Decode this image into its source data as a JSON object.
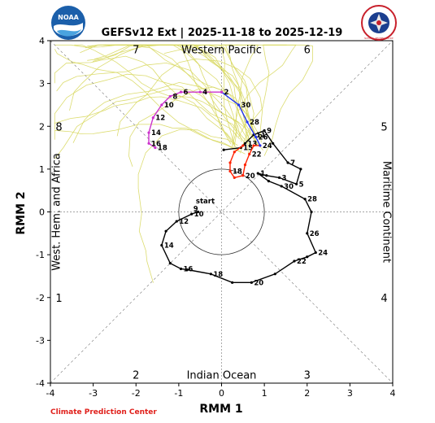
{
  "title": "GEFSv12 Ext | 2025-11-18 to 2025-12-19",
  "credit": "Climate Prediction Center",
  "logos": {
    "left": {
      "icon": "noaa-logo",
      "text": "NOAA"
    },
    "right": {
      "icon": "nws-logo",
      "text": "NATIONAL WEATHER SERVICE"
    }
  },
  "chart_data": {
    "type": "line",
    "title": "GEFSv12 Ext | 2025-11-18 to 2025-12-19",
    "xlabel": "RMM 1",
    "ylabel": "RMM 2",
    "xlim": [
      -4,
      4
    ],
    "ylim": [
      -4,
      4
    ],
    "xticks": [
      "-4",
      "-3",
      "-2",
      "-1",
      "0",
      "1",
      "2",
      "3",
      "4"
    ],
    "yticks": [
      "-4",
      "-3",
      "-2",
      "-1",
      "0",
      "1",
      "2",
      "3",
      "4"
    ],
    "grid": false,
    "unit_circle_radius": 1,
    "region_labels": {
      "top": "Western Pacific",
      "bottom": "Indian Ocean",
      "left": "West. Hem. and Africa",
      "right": "Maritime Continent"
    },
    "phase_labels": [
      {
        "text": "1",
        "x": -3.8,
        "y": -2.0
      },
      {
        "text": "2",
        "x": -2.0,
        "y": -3.8
      },
      {
        "text": "3",
        "x": 2.0,
        "y": -3.8
      },
      {
        "text": "4",
        "x": 3.8,
        "y": -2.0
      },
      {
        "text": "5",
        "x": 3.8,
        "y": 2.0
      },
      {
        "text": "6",
        "x": 2.0,
        "y": 3.8
      },
      {
        "text": "7",
        "x": -2.0,
        "y": 3.8
      },
      {
        "text": "8",
        "x": -3.8,
        "y": 2.0
      }
    ],
    "start_label": "start",
    "series": [
      {
        "color": "#000000",
        "points": [
          {
            "x": -0.55,
            "y": 0.0,
            "label": ""
          },
          {
            "x": -0.7,
            "y": -0.05,
            "label": "10"
          },
          {
            "x": -1.05,
            "y": -0.22,
            "label": "12"
          },
          {
            "x": -1.3,
            "y": -0.45,
            "label": ""
          },
          {
            "x": -1.4,
            "y": -0.78,
            "label": "14"
          },
          {
            "x": -1.2,
            "y": -1.2,
            "label": ""
          },
          {
            "x": -0.95,
            "y": -1.33,
            "label": "16"
          },
          {
            "x": -0.8,
            "y": -1.35,
            "label": ""
          },
          {
            "x": -0.25,
            "y": -1.45,
            "label": "18"
          },
          {
            "x": 0.25,
            "y": -1.65,
            "label": ""
          },
          {
            "x": 0.7,
            "y": -1.65,
            "label": "20"
          },
          {
            "x": 1.25,
            "y": -1.45,
            "label": ""
          },
          {
            "x": 1.7,
            "y": -1.15,
            "label": "22"
          },
          {
            "x": 2.0,
            "y": -1.05,
            "label": ""
          },
          {
            "x": 2.2,
            "y": -0.95,
            "label": "24"
          },
          {
            "x": 2.0,
            "y": -0.5,
            "label": "26"
          },
          {
            "x": 2.1,
            "y": 0.0,
            "label": ""
          },
          {
            "x": 1.95,
            "y": 0.3,
            "label": "28"
          },
          {
            "x": 1.4,
            "y": 0.6,
            "label": "30"
          },
          {
            "x": 1.1,
            "y": 0.72,
            "label": ""
          },
          {
            "x": 0.85,
            "y": 0.9,
            "label": "1"
          },
          {
            "x": 1.05,
            "y": 0.85,
            "label": ""
          },
          {
            "x": 1.35,
            "y": 0.8,
            "label": "3"
          },
          {
            "x": 1.75,
            "y": 0.65,
            "label": "5"
          },
          {
            "x": 1.85,
            "y": 1.0,
            "label": ""
          },
          {
            "x": 1.55,
            "y": 1.15,
            "label": "7"
          },
          {
            "x": 1.2,
            "y": 1.6,
            "label": ""
          },
          {
            "x": 1.0,
            "y": 1.9,
            "label": "9"
          },
          {
            "x": 0.75,
            "y": 1.8,
            "label": "11"
          },
          {
            "x": 0.55,
            "y": 1.6,
            "label": "13"
          },
          {
            "x": 0.45,
            "y": 1.5,
            "label": "15"
          },
          {
            "x": 0.05,
            "y": 1.45,
            "label": ""
          }
        ]
      },
      {
        "color": "#ff2200",
        "points": [
          {
            "x": 0.5,
            "y": 1.55,
            "label": ""
          },
          {
            "x": 0.3,
            "y": 1.4,
            "label": ""
          },
          {
            "x": 0.2,
            "y": 1.15,
            "label": ""
          },
          {
            "x": 0.2,
            "y": 0.95,
            "label": "18"
          },
          {
            "x": 0.3,
            "y": 0.8,
            "label": ""
          },
          {
            "x": 0.5,
            "y": 0.85,
            "label": "20"
          },
          {
            "x": 0.55,
            "y": 1.1,
            "label": ""
          },
          {
            "x": 0.65,
            "y": 1.35,
            "label": "22"
          },
          {
            "x": 0.75,
            "y": 1.55,
            "label": ""
          },
          {
            "x": 0.9,
            "y": 1.55,
            "label": "24"
          }
        ]
      },
      {
        "color": "#2233ee",
        "points": [
          {
            "x": 0.9,
            "y": 1.55,
            "label": ""
          },
          {
            "x": 0.8,
            "y": 1.75,
            "label": "26"
          },
          {
            "x": 0.6,
            "y": 2.1,
            "label": "28"
          },
          {
            "x": 0.4,
            "y": 2.5,
            "label": "30"
          },
          {
            "x": 0.0,
            "y": 2.8,
            "label": ""
          }
        ]
      },
      {
        "color": "#cc33cc",
        "points": [
          {
            "x": 0.0,
            "y": 2.8,
            "label": "2"
          },
          {
            "x": -0.5,
            "y": 2.8,
            "label": "4"
          },
          {
            "x": -0.95,
            "y": 2.8,
            "label": "6"
          },
          {
            "x": -1.2,
            "y": 2.7,
            "label": "8"
          },
          {
            "x": -1.4,
            "y": 2.5,
            "label": "10"
          },
          {
            "x": -1.6,
            "y": 2.2,
            "label": "12"
          },
          {
            "x": -1.7,
            "y": 1.85,
            "label": "14"
          },
          {
            "x": -1.7,
            "y": 1.6,
            "label": "16"
          },
          {
            "x": -1.55,
            "y": 1.5,
            "label": "18"
          }
        ]
      }
    ],
    "ensemble_color": "#d8d860"
  }
}
